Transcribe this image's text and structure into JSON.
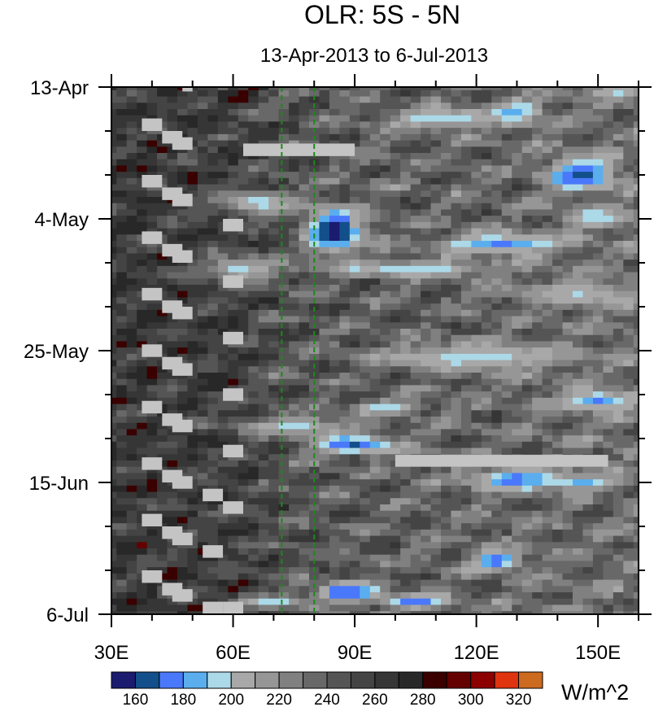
{
  "chart_data": {
    "type": "heatmap",
    "title": "OLR: 5S - 5N",
    "subtitle": "13-Apr-2013 to 6-Jul-2013",
    "xlabel": "",
    "ylabel": "",
    "xlim": [
      30,
      160
    ],
    "ylim_days": [
      0,
      84
    ],
    "x_ticks": [
      {
        "value": 30,
        "label": "30E"
      },
      {
        "value": 60,
        "label": "60E"
      },
      {
        "value": 90,
        "label": "90E"
      },
      {
        "value": 120,
        "label": "120E"
      },
      {
        "value": 150,
        "label": "150E"
      }
    ],
    "x_minor_step": 10,
    "y_ticks": [
      {
        "day": 0,
        "label": "13-Apr"
      },
      {
        "day": 21,
        "label": "4-May"
      },
      {
        "day": 42,
        "label": "25-May"
      },
      {
        "day": 63,
        "label": "15-Jun"
      },
      {
        "day": 84,
        "label": "6-Jul"
      }
    ],
    "y_minor_step_days": 7,
    "grid": false,
    "reference_lines_lon": [
      72,
      80
    ],
    "reference_line_color": "#1a8a1a",
    "missing_color": "#c4c4c4",
    "colorbar": {
      "units": "W/m^2",
      "placement": "bottom",
      "levels": [
        160,
        170,
        180,
        190,
        200,
        210,
        220,
        230,
        240,
        250,
        260,
        270,
        280,
        290,
        300,
        310,
        320
      ],
      "labels": [
        "160",
        "180",
        "200",
        "220",
        "240",
        "260",
        "280",
        "300",
        "320"
      ],
      "colors": [
        "#1b1b6f",
        "#134f8a",
        "#4a78fa",
        "#5aaeee",
        "#acd9e8",
        "#a8a8a8",
        "#969696",
        "#808080",
        "#686868",
        "#555555",
        "#444444",
        "#363636",
        "#282828",
        "#3a0000",
        "#640000",
        "#8c0000",
        "#e0330f",
        "#cc6a20"
      ]
    },
    "background": [
      {
        "lon": 30,
        "value": 262
      },
      {
        "lon": 60,
        "value": 258
      },
      {
        "lon": 75,
        "value": 245
      },
      {
        "lon": 100,
        "value": 238
      },
      {
        "lon": 160,
        "value": 232
      }
    ],
    "features": [
      {
        "lon": 85,
        "day": 23,
        "value": 152,
        "rx": 7,
        "ry": 3.5
      },
      {
        "lon": 66,
        "day": 18.5,
        "value": 195,
        "rx": 10,
        "ry": 2
      },
      {
        "lon": 62,
        "day": 29,
        "value": 195,
        "rx": 10,
        "ry": 2
      },
      {
        "lon": 146,
        "day": 14,
        "value": 162,
        "rx": 8,
        "ry": 2.5
      },
      {
        "lon": 130,
        "day": 4,
        "value": 185,
        "rx": 6,
        "ry": 2
      },
      {
        "lon": 155,
        "day": 0.5,
        "value": 195,
        "rx": 8,
        "ry": 1
      },
      {
        "lon": 112,
        "day": 5,
        "value": 190,
        "rx": 14,
        "ry": 1.5
      },
      {
        "lon": 126,
        "day": 25,
        "value": 178,
        "rx": 15,
        "ry": 1.5
      },
      {
        "lon": 105,
        "day": 29,
        "value": 190,
        "rx": 20,
        "ry": 1.2
      },
      {
        "lon": 150,
        "day": 21,
        "value": 190,
        "rx": 8,
        "ry": 1.5
      },
      {
        "lon": 145,
        "day": 33,
        "value": 200,
        "rx": 15,
        "ry": 2
      },
      {
        "lon": 120,
        "day": 43,
        "value": 195,
        "rx": 25,
        "ry": 2
      },
      {
        "lon": 150,
        "day": 50,
        "value": 178,
        "rx": 10,
        "ry": 1.5
      },
      {
        "lon": 98,
        "day": 51,
        "value": 190,
        "rx": 8,
        "ry": 1
      },
      {
        "lon": 75,
        "day": 54,
        "value": 198,
        "rx": 15,
        "ry": 1.5
      },
      {
        "lon": 90,
        "day": 57,
        "value": 168,
        "rx": 10,
        "ry": 1.5
      },
      {
        "lon": 130,
        "day": 62.5,
        "value": 172,
        "rx": 12,
        "ry": 1.5
      },
      {
        "lon": 146,
        "day": 63,
        "value": 185,
        "rx": 8,
        "ry": 1
      },
      {
        "lon": 125,
        "day": 75.5,
        "value": 172,
        "rx": 6,
        "ry": 1.5
      },
      {
        "lon": 88,
        "day": 80.5,
        "value": 162,
        "rx": 8,
        "ry": 1.5
      },
      {
        "lon": 105,
        "day": 82,
        "value": 172,
        "rx": 8,
        "ry": 1
      },
      {
        "lon": 70,
        "day": 82,
        "value": 195,
        "rx": 8,
        "ry": 1
      },
      {
        "lon": 66,
        "day": 0,
        "value": 295,
        "rx": 2,
        "ry": 0.6
      },
      {
        "lon": 37,
        "day": 41,
        "value": 292,
        "rx": 1.5,
        "ry": 0.5
      }
    ],
    "missing": [
      {
        "lon": [
          47.5,
          50
        ],
        "day": [
          0,
          0.7
        ]
      },
      {
        "lon": [
          62.5,
          90
        ],
        "day": [
          9,
          11
        ]
      },
      {
        "lon": [
          100,
          152.5
        ],
        "day": [
          58.6,
          60.5
        ]
      }
    ],
    "missing_staircases": {
      "start_days": [
        5,
        14,
        23,
        32,
        41,
        50,
        59,
        68,
        77
      ],
      "steps": [
        {
          "lon": 37.5,
          "dd": 0
        },
        {
          "lon": 42.5,
          "dd": 2
        },
        {
          "lon": 45,
          "dd": 3
        }
      ],
      "lon_width": 5,
      "day_height": 2
    },
    "missing_extra": [
      {
        "lon": 57.5,
        "day": 21
      },
      {
        "lon": 57.5,
        "day": 30
      },
      {
        "lon": 57.5,
        "day": 39
      },
      {
        "lon": 57.5,
        "day": 48
      },
      {
        "lon": 57.5,
        "day": 57
      },
      {
        "lon": 57.5,
        "day": 66
      },
      {
        "lon": 57.5,
        "day": 82
      },
      {
        "lon": 52.5,
        "day": 64
      },
      {
        "lon": 52.5,
        "day": 73
      },
      {
        "lon": 52.5,
        "day": 82
      }
    ]
  }
}
